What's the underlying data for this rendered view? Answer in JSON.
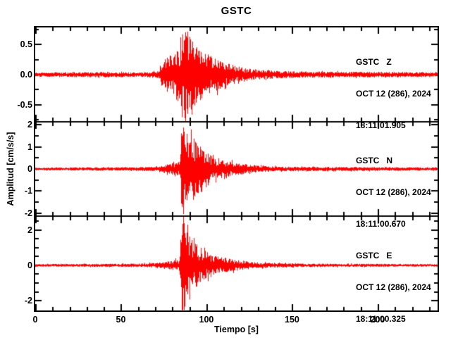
{
  "chart_data": {
    "type": "line",
    "title": "GSTC",
    "xlabel": "Tiempo [s]",
    "ylabel": "Amplitud [cm/s/s]",
    "trace_color": "#ff0000",
    "axis_color": "#000000",
    "x_range": [
      0,
      235
    ],
    "x_major_ticks": [
      0,
      50,
      100,
      150,
      200
    ],
    "x_tick_labels": [
      "0",
      "50",
      "100",
      "150",
      "200"
    ],
    "x_minor_step": 10,
    "grid": "off",
    "panels": [
      {
        "station": "GSTC",
        "channel": "Z",
        "label": "GSTC   Z",
        "date": "OCT 12 (286), 2024",
        "time": "18:11:01.905",
        "y_range": [
          -0.78,
          0.78
        ],
        "y_major_ticks": [
          0.5,
          0,
          -0.5
        ],
        "y_tick_labels": [
          "0.5",
          "0.0",
          "-0.5"
        ],
        "y_minor_step": 0.25,
        "event": {
          "noise_amp": 0.03,
          "p_onset_s": 73,
          "s_peak_s": 88,
          "peak_amp": 0.75,
          "coda_end_s": 150
        },
        "envelope": [
          [
            0,
            0.03
          ],
          [
            40,
            0.042
          ],
          [
            60,
            0.035
          ],
          [
            72,
            0.05
          ],
          [
            74,
            0.18
          ],
          [
            77,
            0.25
          ],
          [
            80,
            0.3
          ],
          [
            83,
            0.38
          ],
          [
            85,
            0.45
          ],
          [
            87,
            0.72
          ],
          [
            89,
            0.64
          ],
          [
            91,
            0.5
          ],
          [
            94,
            0.42
          ],
          [
            98,
            0.35
          ],
          [
            103,
            0.27
          ],
          [
            110,
            0.18
          ],
          [
            118,
            0.12
          ],
          [
            127,
            0.08
          ],
          [
            140,
            0.055
          ],
          [
            160,
            0.045
          ],
          [
            200,
            0.04
          ],
          [
            235,
            0.035
          ]
        ],
        "seed": 11
      },
      {
        "station": "GSTC",
        "channel": "N",
        "label": "GSTC   N",
        "date": "OCT 12 (286), 2024",
        "time": "18:11:00.670",
        "y_range": [
          -2.13,
          2.13
        ],
        "y_major_ticks": [
          2,
          1,
          0,
          -1,
          -2
        ],
        "y_tick_labels": [
          "2",
          "1",
          "0",
          "-1",
          "-2"
        ],
        "y_minor_step": 0.5,
        "event": {
          "noise_amp": 0.06,
          "p_onset_s": 74,
          "s_peak_s": 87,
          "peak_amp": 2.05,
          "coda_end_s": 145
        },
        "envelope": [
          [
            0,
            0.06
          ],
          [
            55,
            0.07
          ],
          [
            70,
            0.09
          ],
          [
            74,
            0.15
          ],
          [
            78,
            0.2
          ],
          [
            82,
            0.25
          ],
          [
            84.5,
            0.3
          ],
          [
            85.5,
            2.0
          ],
          [
            87,
            1.85
          ],
          [
            89,
            1.4
          ],
          [
            91,
            1.7
          ],
          [
            93,
            1.15
          ],
          [
            96,
            0.9
          ],
          [
            100,
            0.7
          ],
          [
            104,
            0.5
          ],
          [
            110,
            0.35
          ],
          [
            117,
            0.25
          ],
          [
            125,
            0.17
          ],
          [
            135,
            0.11
          ],
          [
            150,
            0.085
          ],
          [
            200,
            0.075
          ],
          [
            235,
            0.065
          ]
        ],
        "seed": 22
      },
      {
        "station": "GSTC",
        "channel": "E",
        "label": "GSTC   E",
        "date": "OCT 12 (286), 2024",
        "time": "18:11:00.325",
        "y_range": [
          -2.55,
          2.78
        ],
        "y_major_ticks": [
          2,
          0,
          -2
        ],
        "y_tick_labels": [
          "2",
          "0",
          "-2"
        ],
        "y_minor_step": 0.5,
        "event": {
          "noise_amp": 0.065,
          "p_onset_s": 73,
          "s_peak_s": 86,
          "peak_amp": 2.7,
          "coda_end_s": 145
        },
        "envelope": [
          [
            0,
            0.065
          ],
          [
            50,
            0.08
          ],
          [
            65,
            0.1
          ],
          [
            72,
            0.14
          ],
          [
            76,
            0.2
          ],
          [
            80,
            0.24
          ],
          [
            84,
            0.3
          ],
          [
            85.5,
            2.6
          ],
          [
            87,
            2.2
          ],
          [
            89,
            1.6
          ],
          [
            91,
            1.35
          ],
          [
            94,
            1.05
          ],
          [
            97,
            0.85
          ],
          [
            100,
            0.68
          ],
          [
            104,
            0.52
          ],
          [
            110,
            0.38
          ],
          [
            118,
            0.26
          ],
          [
            128,
            0.16
          ],
          [
            140,
            0.11
          ],
          [
            160,
            0.085
          ],
          [
            200,
            0.075
          ],
          [
            235,
            0.065
          ]
        ],
        "seed": 33
      }
    ]
  }
}
